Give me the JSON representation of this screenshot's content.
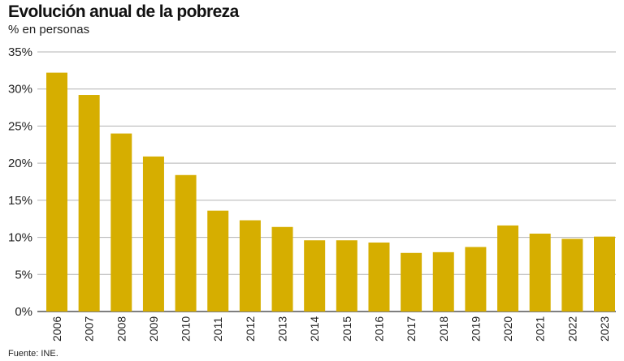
{
  "chart_data": {
    "type": "bar",
    "title": "Evolución anual de la pobreza",
    "subtitle": "% en personas",
    "source": "Fuente: INE.",
    "xlabel": "",
    "ylabel": "",
    "ylim": [
      0,
      35
    ],
    "yticks": [
      0,
      5,
      10,
      15,
      20,
      25,
      30,
      35
    ],
    "ytick_labels": [
      "0%",
      "5%",
      "10%",
      "15%",
      "20%",
      "25%",
      "30%",
      "35%"
    ],
    "grid": true,
    "categories": [
      "2006",
      "2007",
      "2008",
      "2009",
      "2010",
      "2011",
      "2012",
      "2013",
      "2014",
      "2015",
      "2016",
      "2017",
      "2018",
      "2019",
      "2020",
      "2021",
      "2022",
      "2023"
    ],
    "values": [
      32.2,
      29.2,
      24.0,
      20.9,
      18.4,
      13.6,
      12.3,
      11.4,
      9.6,
      9.6,
      9.3,
      7.9,
      8.0,
      8.7,
      11.6,
      10.5,
      9.8,
      10.1
    ],
    "bar_color": "#d6ae00",
    "grid_color": "#b3b3b3"
  }
}
